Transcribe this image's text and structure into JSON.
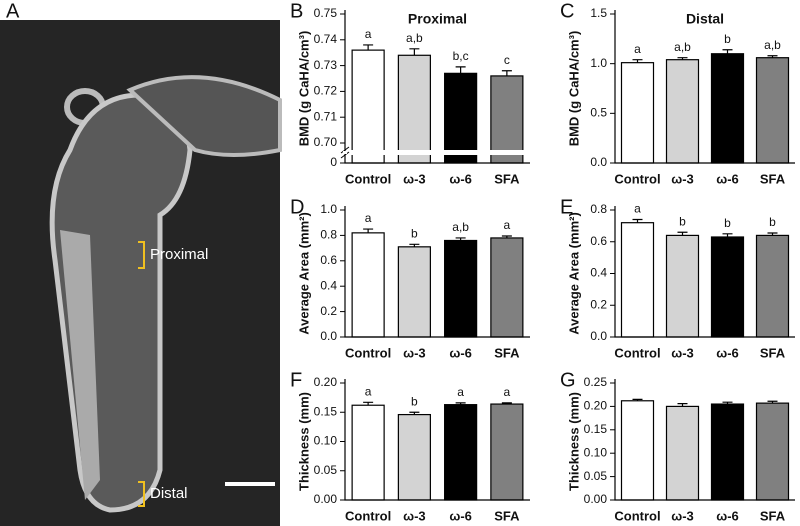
{
  "image": {
    "panel": "A",
    "labels": [
      "Proximal",
      "Distal"
    ]
  },
  "chart_data": [
    {
      "type": "bar",
      "panel": "B",
      "title": "Proximal",
      "ylabel": "BMD (g CaHA/cm³)",
      "categories": [
        "Control",
        "ω-3",
        "ω-6",
        "SFA"
      ],
      "colors": [
        "#ffffff",
        "#d3d3d3",
        "#000000",
        "#808080"
      ],
      "values": [
        0.736,
        0.734,
        0.727,
        0.726
      ],
      "errors": [
        0.002,
        0.0025,
        0.0025,
        0.002
      ],
      "letters": [
        "a",
        "a,b",
        "b,c",
        "c"
      ],
      "ylim": [
        0.7,
        0.75
      ],
      "axis_break": true,
      "yticks": [
        0,
        {
          "value": 0.7,
          "label": "0.70"
        },
        0.71,
        0.72,
        0.73,
        0.74,
        0.75
      ]
    },
    {
      "type": "bar",
      "panel": "C",
      "title": "Distal",
      "ylabel": "BMD (g CaHA/cm³)",
      "categories": [
        "Control",
        "ω-3",
        "ω-6",
        "SFA"
      ],
      "colors": [
        "#ffffff",
        "#d3d3d3",
        "#000000",
        "#808080"
      ],
      "values": [
        1.01,
        1.04,
        1.1,
        1.06
      ],
      "errors": [
        0.03,
        0.02,
        0.04,
        0.02
      ],
      "letters": [
        "a",
        "a,b",
        "b",
        "a,b"
      ],
      "ylim": [
        0,
        1.5
      ],
      "yticks": [
        {
          "value": 0,
          "label": "0.0"
        },
        0.5,
        {
          "value": 1,
          "label": "1.0"
        },
        1.5
      ]
    },
    {
      "type": "bar",
      "panel": "D",
      "ylabel": "Average Area (mm²)",
      "categories": [
        "Control",
        "ω-3",
        "ω-6",
        "SFA"
      ],
      "colors": [
        "#ffffff",
        "#d3d3d3",
        "#000000",
        "#808080"
      ],
      "values": [
        0.82,
        0.71,
        0.76,
        0.78
      ],
      "errors": [
        0.03,
        0.02,
        0.02,
        0.015
      ],
      "letters": [
        "a",
        "b",
        "a,b",
        "a"
      ],
      "ylim": [
        0,
        1
      ],
      "yticks": [
        {
          "value": 0,
          "label": "0.0"
        },
        0.2,
        0.4,
        0.6,
        0.8,
        {
          "value": 1,
          "label": "1.0"
        }
      ]
    },
    {
      "type": "bar",
      "panel": "E",
      "ylabel": "Average Area (mm²)",
      "categories": [
        "Control",
        "ω-3",
        "ω-6",
        "SFA"
      ],
      "colors": [
        "#ffffff",
        "#d3d3d3",
        "#000000",
        "#808080"
      ],
      "values": [
        0.72,
        0.64,
        0.63,
        0.64
      ],
      "errors": [
        0.02,
        0.02,
        0.02,
        0.015
      ],
      "letters": [
        "a",
        "b",
        "b",
        "b"
      ],
      "ylim": [
        0,
        0.8
      ],
      "yticks": [
        {
          "value": 0,
          "label": "0.0"
        },
        0.2,
        0.4,
        0.6,
        0.8
      ]
    },
    {
      "type": "bar",
      "panel": "F",
      "ylabel": "Thickness (mm)",
      "categories": [
        "Control",
        "ω-3",
        "ω-6",
        "SFA"
      ],
      "colors": [
        "#ffffff",
        "#d3d3d3",
        "#000000",
        "#808080"
      ],
      "values": [
        0.162,
        0.146,
        0.163,
        0.164
      ],
      "errors": [
        0.005,
        0.004,
        0.003,
        0.002
      ],
      "letters": [
        "a",
        "b",
        "a",
        "a"
      ],
      "ylim": [
        0,
        0.2
      ],
      "yticks": [
        {
          "value": 0,
          "label": "0.00"
        },
        0.05,
        {
          "value": 0.1,
          "label": "0.10"
        },
        0.15,
        {
          "value": 0.2,
          "label": "0.20"
        }
      ]
    },
    {
      "type": "bar",
      "panel": "G",
      "ylabel": "Thickness (mm)",
      "categories": [
        "Control",
        "ω-3",
        "ω-6",
        "SFA"
      ],
      "colors": [
        "#ffffff",
        "#d3d3d3",
        "#000000",
        "#808080"
      ],
      "values": [
        0.212,
        0.2,
        0.205,
        0.207
      ],
      "errors": [
        0.003,
        0.006,
        0.004,
        0.004
      ],
      "ylim": [
        0,
        0.25
      ],
      "yticks": [
        {
          "value": 0,
          "label": "0.00"
        },
        0.05,
        {
          "value": 0.1,
          "label": "0.10"
        },
        0.15,
        {
          "value": 0.2,
          "label": "0.20"
        },
        0.25
      ]
    }
  ]
}
